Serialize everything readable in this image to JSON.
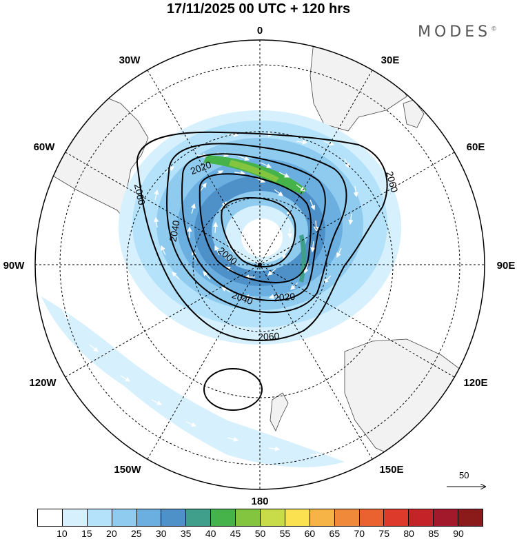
{
  "title": "17/11/2025  00 UTC  + 120 hrs",
  "brand": "MODES",
  "brand_mark": "©",
  "longitude_labels": {
    "top": "0",
    "bottom": "180",
    "left": "90W",
    "right": "90E",
    "w30": "30W",
    "w60": "60W",
    "w120": "120W",
    "w150": "150W",
    "e30": "30E",
    "e60": "60E",
    "e120": "120E",
    "e150": "150E"
  },
  "contour_labels": {
    "c2060_left": "2060",
    "c2020_upper": "2020",
    "c2040_left": "2040",
    "c2060_right": "2060",
    "c2000": "2000",
    "c2040_lower": "2040",
    "c2020_lower": "2020",
    "c2060_lower": "2060"
  },
  "reference_vector": "50",
  "colorbar": {
    "labels": [
      "10",
      "15",
      "20",
      "25",
      "30",
      "35",
      "40",
      "45",
      "50",
      "55",
      "60",
      "65",
      "70",
      "75",
      "80",
      "85",
      "90"
    ],
    "colors": [
      "#ffffff",
      "#d6f0fd",
      "#b4e2fa",
      "#8fcbef",
      "#6aafe0",
      "#4e90c8",
      "#3f9f8a",
      "#46b34a",
      "#84c540",
      "#c7dc48",
      "#fbe04f",
      "#f6b346",
      "#f08a3a",
      "#e9622f",
      "#dd3a2b",
      "#c42328",
      "#a2192b",
      "#8b1a1a"
    ]
  }
}
